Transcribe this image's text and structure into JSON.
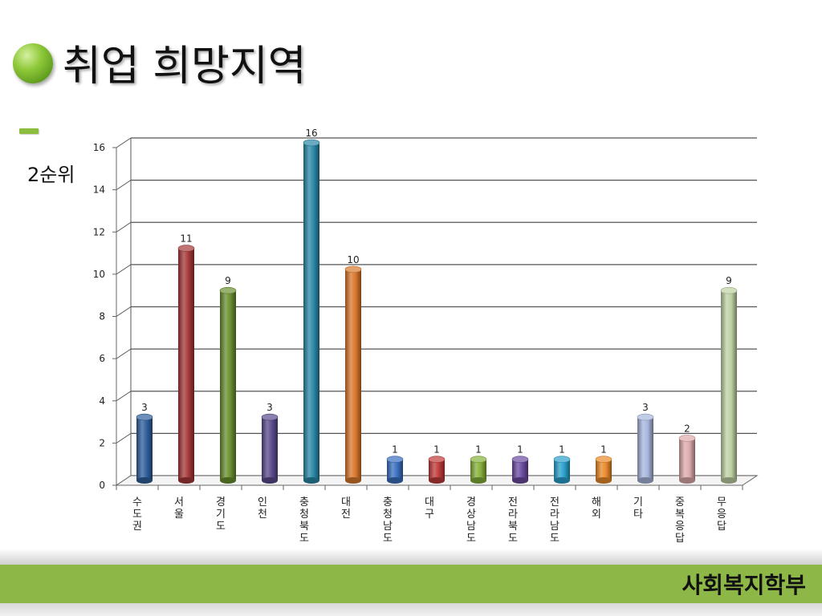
{
  "slide": {
    "title": "취업 희망지역",
    "subtitle": "2순위",
    "footer": "사회복지학부"
  },
  "chart_data": {
    "type": "bar",
    "style": "3d-cylinder",
    "categories": [
      "수도권",
      "서울",
      "경기도",
      "인천",
      "충청북도",
      "대전",
      "충청남도",
      "대구",
      "경상남도",
      "전라북도",
      "전라남도",
      "해외",
      "기타",
      "중복응답",
      "무응답"
    ],
    "values": [
      3,
      11,
      9,
      3,
      16,
      10,
      1,
      1,
      1,
      1,
      1,
      1,
      3,
      2,
      9
    ],
    "colors": [
      "#2f5f9c",
      "#a53838",
      "#6a8f30",
      "#5b4a8c",
      "#2a87a6",
      "#d9782c",
      "#3a6fc0",
      "#c03a3a",
      "#86b03a",
      "#6a4ca0",
      "#2aa0cc",
      "#ea8a2a",
      "#a7b6dc",
      "#deaaae",
      "#bed1a3"
    ],
    "ylim": [
      0,
      16
    ],
    "yticks": [
      0,
      2,
      4,
      6,
      8,
      10,
      12,
      14,
      16
    ],
    "grid": true,
    "legend": "none",
    "data_labels": true
  }
}
